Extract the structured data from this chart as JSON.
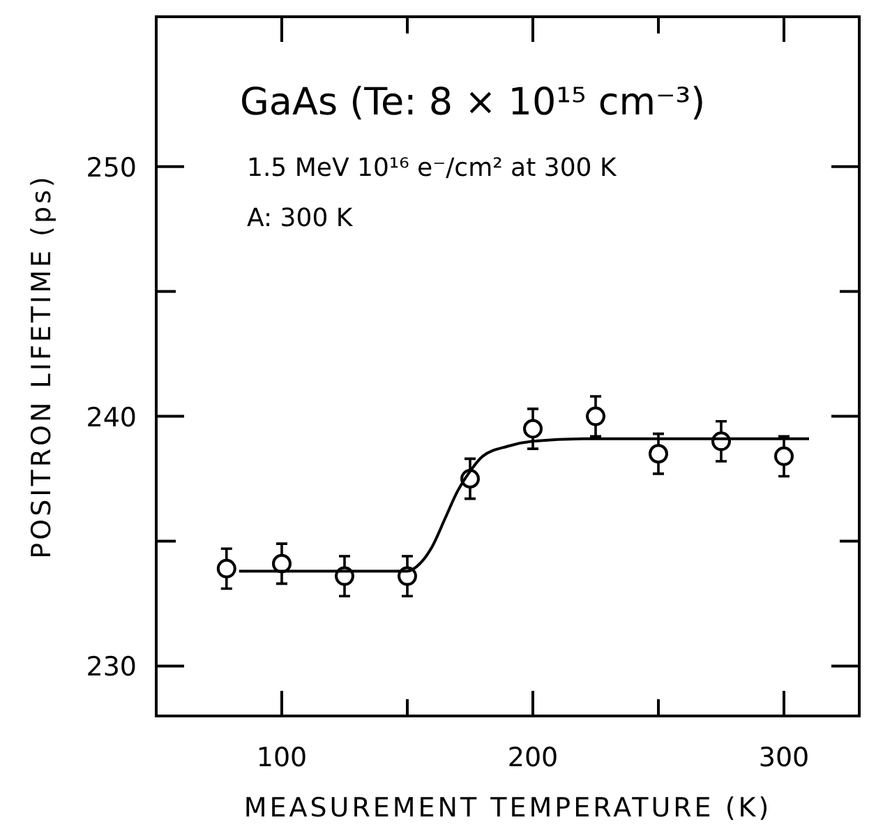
{
  "chart_data": {
    "type": "scatter",
    "title": "GaAs (Te: 8 × 10¹⁵ cm⁻³)",
    "xlabel": "MEASUREMENT TEMPERATURE (K)",
    "ylabel": "POSITRON LIFETIME (ps)",
    "annotations": [
      "1.5 MeV 10¹⁶ e⁻/cm² at 300 K",
      "A: 300 K"
    ],
    "xlim": [
      50,
      330
    ],
    "ylim": [
      228,
      256
    ],
    "xticks": [
      100,
      {
        "value": 150,
        "label": null
      },
      200,
      {
        "value": 250,
        "label": null
      },
      300
    ],
    "yticks": [
      230,
      {
        "value": 235,
        "label": null
      },
      240,
      {
        "value": 245,
        "label": null
      },
      250
    ],
    "grid": false,
    "series": [
      {
        "color": "#000000",
        "marker": "circle",
        "x": [
          78,
          100,
          125,
          150,
          175,
          200,
          225,
          250,
          275,
          300
        ],
        "values": [
          233.9,
          234.1,
          233.6,
          233.6,
          237.5,
          239.5,
          240.0,
          238.5,
          239.0,
          238.4
        ],
        "errors": [
          0.8,
          0.8,
          0.8,
          0.8,
          0.8,
          0.8,
          0.8,
          0.8,
          0.8,
          0.8
        ]
      },
      {
        "type": "line",
        "color": "#000000",
        "line_style": "solid",
        "x": [
          83,
          150,
          155,
          160,
          165,
          170,
          175,
          180,
          190,
          200,
          220,
          310
        ],
        "values": [
          233.8,
          233.8,
          234.1,
          234.8,
          235.9,
          237.0,
          237.8,
          238.4,
          238.8,
          239.0,
          239.1,
          239.1
        ]
      }
    ]
  }
}
